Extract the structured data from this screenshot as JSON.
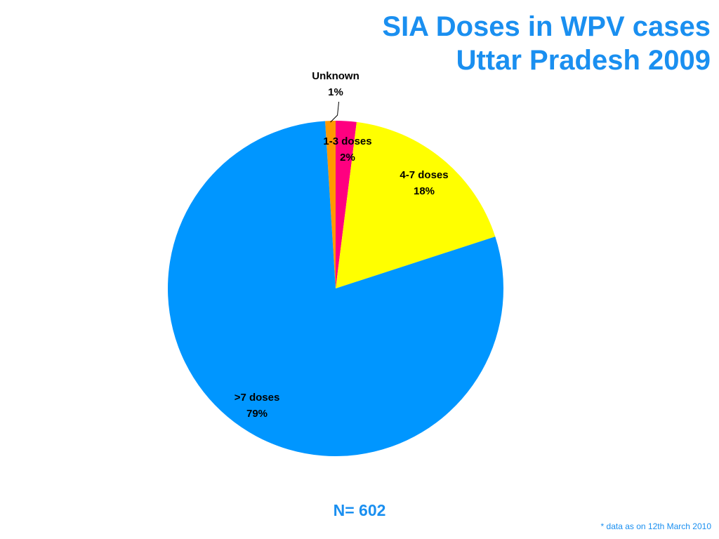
{
  "chart_data": {
    "type": "pie",
    "title_line1": "SIA Doses in WPV cases",
    "title_line2": "Uttar Pradesh 2009",
    "slices": [
      {
        "name": "Unknown",
        "value": 1,
        "label": "1%",
        "color": "#ff9900"
      },
      {
        "name": "1-3 doses",
        "value": 2,
        "label": "2%",
        "color": "#ff0080"
      },
      {
        "name": "4-7 doses",
        "value": 18,
        "label": "18%",
        "color": "#ffff00"
      },
      {
        "name": ">7 doses",
        "value": 79,
        "label": "79%",
        "color": "#0096ff"
      }
    ]
  },
  "n_label": "N= 602",
  "footnote": "* data as on 12th March 2010",
  "colors": {
    "accent": "#1a8ff0"
  }
}
